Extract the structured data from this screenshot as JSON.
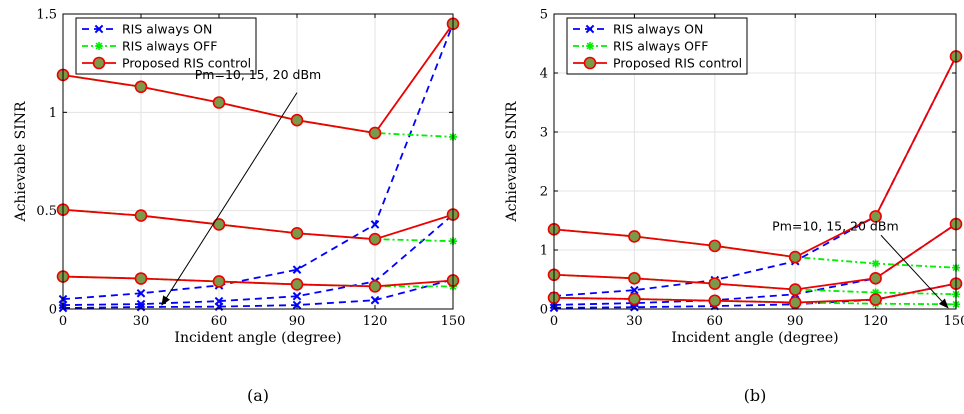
{
  "chart_data": [
    {
      "type": "line",
      "panel_label": "(a)",
      "xlabel": "Incident angle (degree)",
      "ylabel": "Achievable SINR",
      "x": [
        0,
        30,
        60,
        90,
        120,
        150
      ],
      "xlim": [
        0,
        150
      ],
      "ylim": [
        0,
        1.5
      ],
      "xticks": [
        "0",
        "30",
        "60",
        "90",
        "120",
        "150"
      ],
      "yticks": [
        {
          "value": 0,
          "label": "0"
        },
        {
          "value": 0.5,
          "label": "0.5"
        },
        {
          "value": 1,
          "label": "1"
        },
        {
          "value": 1.5,
          "label": "1.5"
        }
      ],
      "grid": true,
      "legend_position": "top-left",
      "legend": [
        {
          "label": "RIS always ON",
          "style": "on"
        },
        {
          "label": "RIS always OFF",
          "style": "off"
        },
        {
          "label": "Proposed RIS control",
          "style": "proposed"
        }
      ],
      "series": [
        {
          "style": "on",
          "values": [
            0.05,
            0.08,
            0.12,
            0.2,
            0.43,
            1.45
          ]
        },
        {
          "style": "on",
          "values": [
            0.02,
            0.025,
            0.04,
            0.065,
            0.14,
            0.48
          ]
        },
        {
          "style": "on",
          "values": [
            0.005,
            0.01,
            0.012,
            0.02,
            0.045,
            0.15
          ]
        },
        {
          "style": "off",
          "values": [
            1.19,
            1.13,
            1.05,
            0.96,
            0.895,
            0.875
          ]
        },
        {
          "style": "off",
          "values": [
            0.505,
            0.475,
            0.43,
            0.385,
            0.355,
            0.345
          ]
        },
        {
          "style": "off",
          "values": [
            0.165,
            0.155,
            0.14,
            0.125,
            0.115,
            0.115
          ]
        },
        {
          "style": "proposed",
          "values": [
            1.19,
            1.13,
            1.05,
            0.96,
            0.895,
            1.45
          ]
        },
        {
          "style": "proposed",
          "values": [
            0.505,
            0.475,
            0.43,
            0.385,
            0.355,
            0.48
          ]
        },
        {
          "style": "proposed",
          "values": [
            0.165,
            0.155,
            0.14,
            0.125,
            0.115,
            0.145
          ]
        }
      ],
      "annotation": {
        "text": "Pm=10, 15, 20 dBm",
        "text_at": {
          "x": 75,
          "y": 1.17
        },
        "arrow_from": {
          "x": 90,
          "y": 1.1
        },
        "arrow_to": {
          "x": 38,
          "y": 0.02
        }
      }
    },
    {
      "type": "line",
      "panel_label": "(b)",
      "xlabel": "Incident angle (degree)",
      "ylabel": "Achievable SINR",
      "x": [
        0,
        30,
        60,
        90,
        120,
        150
      ],
      "xlim": [
        0,
        150
      ],
      "ylim": [
        0,
        5
      ],
      "xticks": [
        "0",
        "30",
        "60",
        "90",
        "120",
        "150"
      ],
      "yticks": [
        {
          "value": 0,
          "label": "0"
        },
        {
          "value": 1,
          "label": "1"
        },
        {
          "value": 2,
          "label": "2"
        },
        {
          "value": 3,
          "label": "3"
        },
        {
          "value": 4,
          "label": "4"
        },
        {
          "value": 5,
          "label": "5"
        }
      ],
      "grid": true,
      "legend_position": "top-left",
      "legend": [
        {
          "label": "RIS always ON",
          "style": "on"
        },
        {
          "label": "RIS always OFF",
          "style": "off"
        },
        {
          "label": "Proposed RIS control",
          "style": "proposed"
        }
      ],
      "series": [
        {
          "style": "on",
          "values": [
            0.22,
            0.32,
            0.49,
            0.81,
            1.57,
            4.28
          ]
        },
        {
          "style": "on",
          "values": [
            0.07,
            0.1,
            0.15,
            0.25,
            0.52,
            1.44
          ]
        },
        {
          "style": "on",
          "values": [
            0.02,
            0.03,
            0.05,
            0.08,
            0.16,
            0.43
          ]
        },
        {
          "style": "off",
          "values": [
            1.35,
            1.23,
            1.07,
            0.88,
            0.77,
            0.7
          ]
        },
        {
          "style": "off",
          "values": [
            0.58,
            0.52,
            0.43,
            0.33,
            0.28,
            0.25
          ]
        },
        {
          "style": "off",
          "values": [
            0.19,
            0.17,
            0.14,
            0.11,
            0.09,
            0.08
          ]
        },
        {
          "style": "proposed",
          "values": [
            1.35,
            1.23,
            1.07,
            0.88,
            1.57,
            4.28
          ]
        },
        {
          "style": "proposed",
          "values": [
            0.58,
            0.52,
            0.43,
            0.33,
            0.52,
            1.44
          ]
        },
        {
          "style": "proposed",
          "values": [
            0.19,
            0.17,
            0.14,
            0.11,
            0.16,
            0.43
          ]
        }
      ],
      "annotation": {
        "text": "Pm=10, 15, 20 dBm",
        "text_at": {
          "x": 105,
          "y": 1.33
        },
        "arrow_from": {
          "x": 122,
          "y": 1.25
        },
        "arrow_to": {
          "x": 147,
          "y": 0.02
        }
      }
    }
  ],
  "colors": {
    "on": "#0000ff",
    "off": "#00ee00",
    "proposed": "#ee0000",
    "marker_fill": "#7a9a4a",
    "grid": "#e3e3e3",
    "axis": "#000000"
  }
}
